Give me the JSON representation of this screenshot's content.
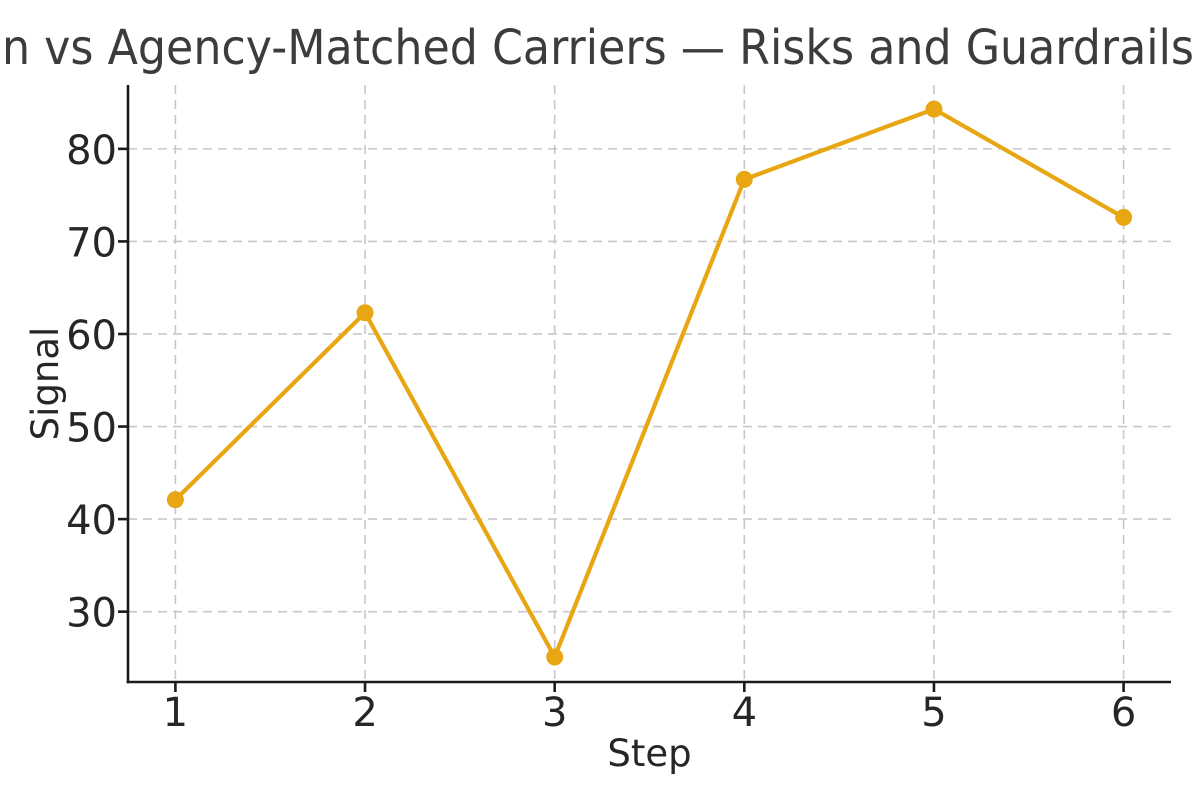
{
  "chart_data": {
    "type": "line",
    "title": "n vs Agency-Matched Carriers — Risks and Guardrails",
    "xlabel": "Step",
    "ylabel": "Signal",
    "x": [
      1,
      2,
      3,
      4,
      5,
      6
    ],
    "series": [
      {
        "name": "Signal",
        "values": [
          42.1,
          62.3,
          25.1,
          76.7,
          84.3,
          72.6
        ]
      }
    ],
    "xticks": [
      "1",
      "2",
      "3",
      "4",
      "5",
      "6"
    ],
    "yticks": [
      "30",
      "40",
      "50",
      "60",
      "70",
      "80"
    ],
    "xlim": [
      0.75,
      6.25
    ],
    "ylim": [
      22.4,
      86.9
    ],
    "grid": "dashed-both-axes",
    "legend_position": "none",
    "marker": "circle",
    "colors": {
      "line": "#E8A613",
      "marker": "#E8A613",
      "grid": "#c8c8c8",
      "spine": "#1b1b1b",
      "tick_label": "#262626",
      "axis_label": "#262626",
      "title": "#3c3c3c",
      "background": "#ffffff"
    }
  }
}
